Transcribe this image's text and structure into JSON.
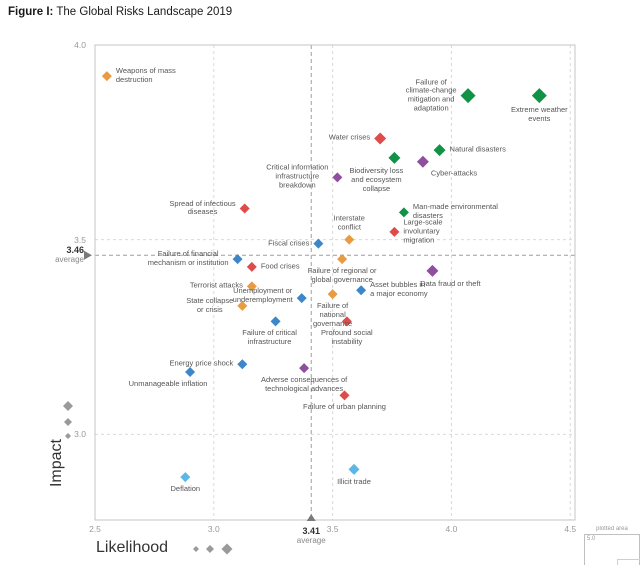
{
  "figure": {
    "label": "Figure I:",
    "title": "The Global Risks Landscape 2019"
  },
  "axes": {
    "x": {
      "title": "Likelihood",
      "ticks": [
        "2.5",
        "3.0",
        "3.5",
        "4.0",
        "4.5"
      ],
      "average_label": {
        "value": "3.41",
        "caption": "average"
      }
    },
    "y": {
      "title": "Impact",
      "ticks": [
        "4.0",
        "3.5",
        "3.0"
      ],
      "average_label": {
        "value": "3.46",
        "caption": "average"
      }
    }
  },
  "categories": {
    "economic": "#3b87c9",
    "environmental": "#129247",
    "geopolitical": "#e89b41",
    "societal": "#df4b4b",
    "technological": "#8f4f9e"
  },
  "inset": {
    "plotted_area": "plotted area",
    "max_label": "5.0"
  },
  "chart_data": {
    "type": "scatter",
    "title": "The Global Risks Landscape 2019",
    "xlabel": "Likelihood",
    "ylabel": "Impact",
    "xlim": [
      2.5,
      4.52
    ],
    "ylim": [
      2.78,
      4.0
    ],
    "x_average": 3.41,
    "y_average": 3.46,
    "grid": {
      "x": [
        3.0,
        3.5,
        4.0,
        4.5
      ],
      "y": [
        3.5,
        3.0
      ]
    },
    "points": [
      {
        "name": "Weapons of mass destruction",
        "label": "Weapons of mass\ndestruction",
        "category": "geopolitical",
        "likelihood": 2.55,
        "impact": 3.92,
        "size": 10,
        "anchor": "right"
      },
      {
        "name": "Failure of climate-change mitigation and adaptation",
        "label": "Failure of\nclimate-change\nmitigation and\nadaptation",
        "category": "environmental",
        "likelihood": 4.07,
        "impact": 3.87,
        "size": 15,
        "anchor": "left",
        "align": "center"
      },
      {
        "name": "Extreme weather events",
        "label": "Extreme weather\nevents",
        "category": "environmental",
        "likelihood": 4.37,
        "impact": 3.87,
        "size": 15,
        "anchor": "below"
      },
      {
        "name": "Water crises",
        "label": "Water crises",
        "category": "societal",
        "likelihood": 3.7,
        "impact": 3.76,
        "size": 12,
        "anchor": "left"
      },
      {
        "name": "Biodiversity loss and ecosystem collapse",
        "label": "Biodiversity loss\nand ecosystem\ncollapse",
        "category": "environmental",
        "likelihood": 3.76,
        "impact": 3.71,
        "size": 12,
        "anchor": "below",
        "dx": -18
      },
      {
        "name": "Cyber-attacks",
        "label": "Cyber-attacks",
        "category": "technological",
        "likelihood": 3.88,
        "impact": 3.7,
        "size": 12,
        "anchor": "right",
        "dx": -2,
        "dy": 12
      },
      {
        "name": "Natural disasters",
        "label": "Natural disasters",
        "category": "environmental",
        "likelihood": 3.95,
        "impact": 3.73,
        "size": 12,
        "anchor": "right"
      },
      {
        "name": "Critical information infrastructure breakdown",
        "label": "Critical information\ninfrastructure\nbreakdown",
        "category": "technological",
        "likelihood": 3.52,
        "impact": 3.66,
        "size": 10,
        "anchor": "left",
        "align": "center"
      },
      {
        "name": "Spread of infectious diseases",
        "label": "Spread of infectious\ndiseases",
        "category": "societal",
        "likelihood": 3.13,
        "impact": 3.58,
        "size": 10,
        "anchor": "left",
        "align": "center"
      },
      {
        "name": "Man-made environmental disasters",
        "label": "Man-made environmental\ndisasters",
        "category": "environmental",
        "likelihood": 3.8,
        "impact": 3.57,
        "size": 10,
        "anchor": "right"
      },
      {
        "name": "Interstate conflict",
        "label": "Interstate\nconflict",
        "category": "geopolitical",
        "likelihood": 3.57,
        "impact": 3.5,
        "size": 10,
        "anchor": "above"
      },
      {
        "name": "Large-scale involuntary migration",
        "label": "Large-scale\ninvoluntary\nmigration",
        "category": "societal",
        "likelihood": 3.76,
        "impact": 3.52,
        "size": 10,
        "anchor": "right"
      },
      {
        "name": "Fiscal crises",
        "label": "Fiscal crises",
        "category": "economic",
        "likelihood": 3.44,
        "impact": 3.49,
        "size": 10,
        "anchor": "left"
      },
      {
        "name": "Failure of regional or global governance",
        "label": "Failure of regional or\nglobal governance",
        "category": "geopolitical",
        "likelihood": 3.54,
        "impact": 3.45,
        "size": 10,
        "anchor": "below"
      },
      {
        "name": "Failure of financial mechanism or institution",
        "label": "Failure of financial\nmechanism or institution",
        "category": "economic",
        "likelihood": 3.1,
        "impact": 3.45,
        "size": 10,
        "anchor": "left",
        "align": "center"
      },
      {
        "name": "Food crises",
        "label": "Food crises",
        "category": "societal",
        "likelihood": 3.16,
        "impact": 3.43,
        "size": 10,
        "anchor": "right"
      },
      {
        "name": "Data fraud or theft",
        "label": "Data fraud or theft",
        "category": "technological",
        "likelihood": 3.92,
        "impact": 3.42,
        "size": 12,
        "anchor": "below",
        "dx": 18
      },
      {
        "name": "Terrorist attacks",
        "label": "Terrorist attacks",
        "category": "geopolitical",
        "likelihood": 3.16,
        "impact": 3.38,
        "size": 10,
        "anchor": "left"
      },
      {
        "name": "Asset bubbles in a major economy",
        "label": "Asset bubbles in\na major economy",
        "category": "economic",
        "likelihood": 3.62,
        "impact": 3.37,
        "size": 10,
        "anchor": "right"
      },
      {
        "name": "Failure of national governance",
        "label": "Failure of\nnational\ngovernance",
        "category": "geopolitical",
        "likelihood": 3.5,
        "impact": 3.36,
        "size": 10,
        "anchor": "below"
      },
      {
        "name": "Unemployment or underemployment",
        "label": "Unemployment or\nunderemployment",
        "category": "economic",
        "likelihood": 3.37,
        "impact": 3.35,
        "size": 10,
        "anchor": "left",
        "align": "center",
        "dy": -2
      },
      {
        "name": "State collapse or crisis",
        "label": "State collapse\nor crisis",
        "category": "geopolitical",
        "likelihood": 3.12,
        "impact": 3.33,
        "size": 10,
        "anchor": "left",
        "align": "center"
      },
      {
        "name": "Failure of critical infrastructure",
        "label": "Failure of critical\ninfrastructure",
        "category": "economic",
        "likelihood": 3.26,
        "impact": 3.29,
        "size": 10,
        "anchor": "below",
        "dx": -6
      },
      {
        "name": "Profound social instability",
        "label": "Profound social\ninstability",
        "category": "societal",
        "likelihood": 3.56,
        "impact": 3.29,
        "size": 10,
        "anchor": "below"
      },
      {
        "name": "Energy price shock",
        "label": "Energy price shock",
        "category": "economic",
        "likelihood": 3.12,
        "impact": 3.18,
        "size": 10,
        "anchor": "left"
      },
      {
        "name": "Adverse consequences of technological advances",
        "label": "Adverse consequences of\ntechnological advances",
        "category": "technological",
        "likelihood": 3.38,
        "impact": 3.17,
        "size": 10,
        "anchor": "below"
      },
      {
        "name": "Unmanageable inflation",
        "label": "Unmanageable inflation",
        "category": "economic",
        "likelihood": 2.9,
        "impact": 3.16,
        "size": 10,
        "anchor": "below",
        "dx": -22
      },
      {
        "name": "Failure of urban planning",
        "label": "Failure of urban planning",
        "category": "societal",
        "likelihood": 3.55,
        "impact": 3.1,
        "size": 10,
        "anchor": "below"
      },
      {
        "name": "Illicit trade",
        "label": "Illicit trade",
        "category": "economic",
        "likelihood": 3.59,
        "impact": 2.91,
        "size": 11,
        "anchor": "below",
        "color": "#5bb7e6"
      },
      {
        "name": "Deflation",
        "label": "Deflation",
        "category": "economic",
        "likelihood": 2.88,
        "impact": 2.89,
        "size": 10,
        "anchor": "below",
        "color": "#5bb7e6"
      }
    ]
  }
}
